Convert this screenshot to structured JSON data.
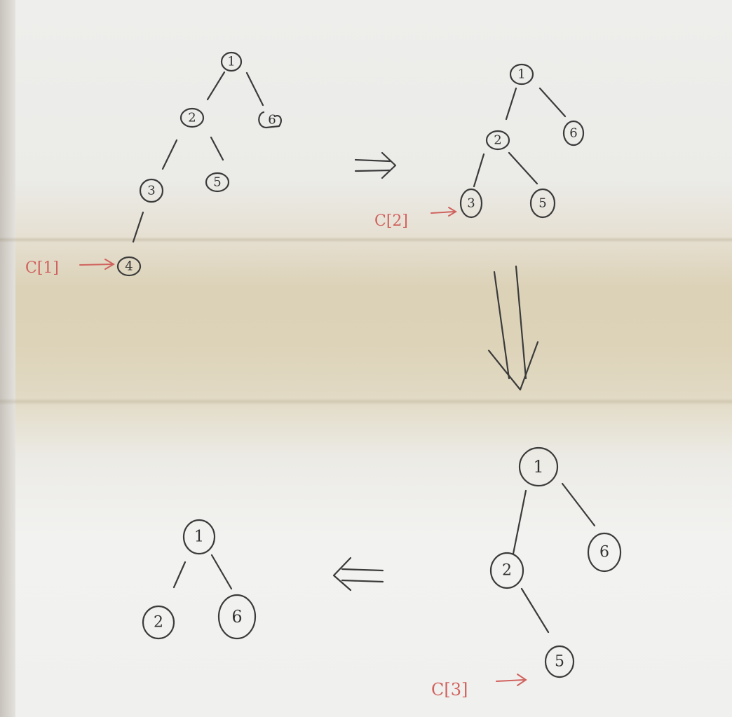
{
  "tree1": {
    "nodes": [
      "1",
      "2",
      "6",
      "3",
      "5",
      "4"
    ],
    "pointer": "C[1]"
  },
  "tree2": {
    "nodes": [
      "1",
      "2",
      "6",
      "3",
      "5"
    ],
    "pointer": "C[2]"
  },
  "tree3": {
    "nodes": [
      "1",
      "2",
      "6",
      "5"
    ],
    "pointer": "C[3]"
  },
  "tree4": {
    "nodes": [
      "1",
      "2",
      "6"
    ]
  }
}
